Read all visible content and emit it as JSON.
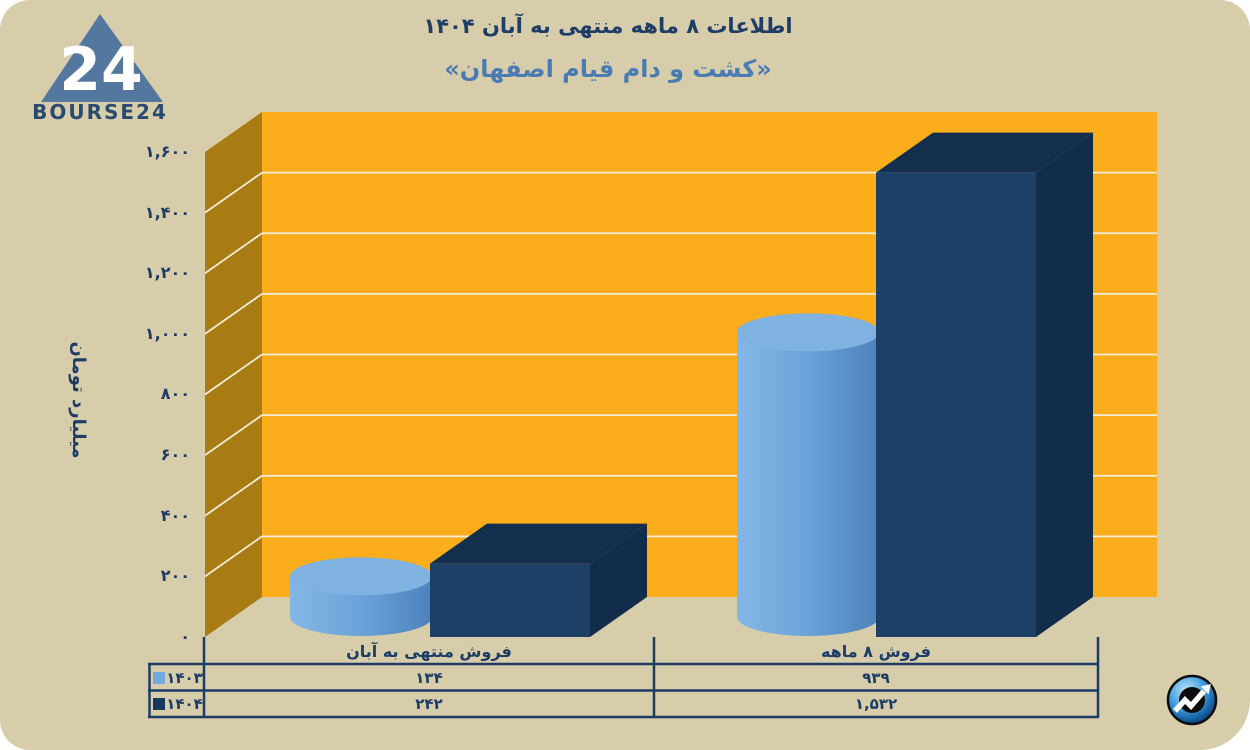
{
  "logo": {
    "mark": "24",
    "wordmark": "BOURSE24"
  },
  "chart_data": {
    "type": "bar",
    "style": "3d-perspective",
    "title": "اطلاعات ۸ ماهه منتهی به آبان ۱۴۰۴",
    "subtitle": "«کشت و دام قیام اصفهان»",
    "ylabel": "میلیارد تومان",
    "ylim": [
      0,
      1600
    ],
    "ytick_step": 200,
    "yticks": [
      "۰",
      "۲۰۰",
      "۴۰۰",
      "۶۰۰",
      "۸۰۰",
      "۱,۰۰۰",
      "۱,۲۰۰",
      "۱,۴۰۰",
      "۱,۶۰۰"
    ],
    "categories": [
      "فروش منتهی به آبان",
      "فروش ۸  ماهه"
    ],
    "series": [
      {
        "name": "۱۴۰۳",
        "shape": "cylinder",
        "color": "#74a9dc",
        "values": [
          134,
          939
        ],
        "display": [
          "۱۳۴",
          "۹۳۹"
        ]
      },
      {
        "name": "۱۴۰۴",
        "shape": "box",
        "color": "#16395c",
        "values": [
          242,
          1532
        ],
        "display": [
          "۲۴۲",
          "۱,۵۳۲"
        ]
      }
    ],
    "legend_position": "table-left",
    "grid": true,
    "colors": {
      "back_wall": "#fbad1b",
      "side_wall": "#a87c12",
      "gridline": "#f2ecd9",
      "cylinder_top": "#7fb1e1",
      "box_front": "#1d4166",
      "box_top": "#142f4e",
      "box_side": "#122d4b",
      "table_line": "#1c3c66",
      "background": "#d7cdab"
    }
  }
}
